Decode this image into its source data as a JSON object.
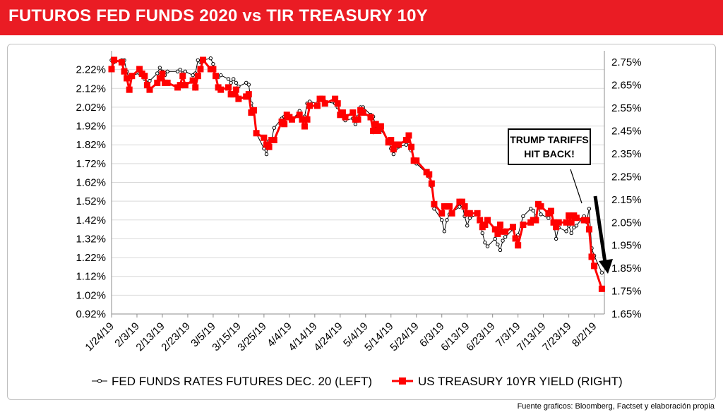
{
  "header": {
    "title": "FUTUROS FED FUNDS 2020 vs TIR TREASURY 10Y"
  },
  "footer": {
    "source": "Fuente graficos: Bloomberg, Factset y elaboración propia"
  },
  "colors": {
    "banner": "#ea1c24",
    "treasury": "#ff0000",
    "fedfunds": "#000000",
    "arrow": "#000000"
  },
  "annotation": {
    "line1": "TRUMP TARIFFS",
    "line2": "HIT BACK!"
  },
  "chart_data": {
    "type": "line",
    "title": "",
    "legend_position": "bottom",
    "grid": true,
    "x_ticks": [
      "1/24/19",
      "2/3/19",
      "2/13/19",
      "2/23/19",
      "3/5/19",
      "3/15/19",
      "3/25/19",
      "4/4/19",
      "4/14/19",
      "4/24/19",
      "5/4/19",
      "5/14/19",
      "5/24/19",
      "6/3/19",
      "6/13/19",
      "6/23/19",
      "7/3/19",
      "7/13/19",
      "7/23/19",
      "8/2/19"
    ],
    "y_left": {
      "min": 0.92,
      "max": 2.32,
      "ticks": [
        "0.92%",
        "1.02%",
        "1.12%",
        "1.22%",
        "1.32%",
        "1.42%",
        "1.52%",
        "1.62%",
        "1.72%",
        "1.82%",
        "1.92%",
        "2.02%",
        "2.12%",
        "2.22%"
      ]
    },
    "y_right": {
      "min": 1.65,
      "max": 2.8,
      "ticks": [
        "1.65%",
        "1.75%",
        "1.85%",
        "1.95%",
        "2.05%",
        "2.15%",
        "2.25%",
        "2.35%",
        "2.45%",
        "2.55%",
        "2.65%",
        "2.75%"
      ]
    },
    "series": [
      {
        "name": "FED FUNDS RATES FUTURES DEC. 20 (LEFT)",
        "axis": "left",
        "marker": "circle",
        "color": "#000000",
        "points": [
          [
            "1/24/19",
            2.27
          ],
          [
            "1/25/19",
            2.26
          ],
          [
            "1/28/19",
            2.27
          ],
          [
            "1/29/19",
            2.27
          ],
          [
            "1/30/19",
            2.21
          ],
          [
            "1/31/19",
            2.17
          ],
          [
            "2/1/19",
            2.19
          ],
          [
            "2/4/19",
            2.2
          ],
          [
            "2/5/19",
            2.19
          ],
          [
            "2/6/19",
            2.17
          ],
          [
            "2/7/19",
            2.15
          ],
          [
            "2/8/19",
            2.16
          ],
          [
            "2/11/19",
            2.2
          ],
          [
            "2/12/19",
            2.23
          ],
          [
            "2/13/19",
            2.21
          ],
          [
            "2/14/19",
            2.19
          ],
          [
            "2/15/19",
            2.21
          ],
          [
            "2/19/19",
            2.21
          ],
          [
            "2/20/19",
            2.22
          ],
          [
            "2/21/19",
            2.2
          ],
          [
            "2/22/19",
            2.21
          ],
          [
            "2/25/19",
            2.19
          ],
          [
            "2/26/19",
            2.2
          ],
          [
            "2/27/19",
            2.27
          ],
          [
            "2/28/19",
            2.26
          ],
          [
            "3/1/19",
            2.27
          ],
          [
            "3/4/19",
            2.28
          ],
          [
            "3/5/19",
            2.25
          ],
          [
            "3/6/19",
            2.19
          ],
          [
            "3/7/19",
            2.18
          ],
          [
            "3/8/19",
            2.19
          ],
          [
            "3/11/19",
            2.17
          ],
          [
            "3/12/19",
            2.15
          ],
          [
            "3/13/19",
            2.17
          ],
          [
            "3/14/19",
            2.15
          ],
          [
            "3/15/19",
            2.13
          ],
          [
            "3/18/19",
            2.15
          ],
          [
            "3/19/19",
            2.14
          ],
          [
            "3/20/19",
            2.04
          ],
          [
            "3/21/19",
            2.01
          ],
          [
            "3/22/19",
            1.88
          ],
          [
            "3/25/19",
            1.8
          ],
          [
            "3/26/19",
            1.77
          ],
          [
            "3/27/19",
            1.84
          ],
          [
            "3/28/19",
            1.85
          ],
          [
            "3/29/19",
            1.91
          ],
          [
            "4/1/19",
            1.96
          ],
          [
            "4/2/19",
            1.97
          ],
          [
            "4/3/19",
            1.98
          ],
          [
            "4/4/19",
            1.96
          ],
          [
            "4/5/19",
            1.95
          ],
          [
            "4/8/19",
            2.0
          ],
          [
            "4/9/19",
            1.96
          ],
          [
            "4/10/19",
            1.97
          ],
          [
            "4/11/19",
            2.04
          ],
          [
            "4/12/19",
            2.05
          ],
          [
            "4/15/19",
            2.04
          ],
          [
            "4/16/19",
            2.06
          ],
          [
            "4/17/19",
            2.07
          ],
          [
            "4/18/19",
            2.05
          ],
          [
            "4/22/19",
            2.04
          ],
          [
            "4/23/19",
            2.02
          ],
          [
            "4/24/19",
            1.98
          ],
          [
            "4/25/19",
            1.99
          ],
          [
            "4/26/19",
            1.95
          ],
          [
            "4/29/19",
            1.96
          ],
          [
            "4/30/19",
            1.93
          ],
          [
            "5/1/19",
            1.97
          ],
          [
            "5/2/19",
            2.02
          ],
          [
            "5/3/19",
            2.02
          ],
          [
            "5/6/19",
            1.98
          ],
          [
            "5/7/19",
            1.97
          ],
          [
            "5/8/19",
            1.92
          ],
          [
            "5/9/19",
            1.91
          ],
          [
            "5/10/19",
            1.9
          ],
          [
            "5/13/19",
            1.84
          ],
          [
            "5/14/19",
            1.8
          ],
          [
            "5/15/19",
            1.77
          ],
          [
            "5/16/19",
            1.8
          ],
          [
            "5/17/19",
            1.81
          ],
          [
            "5/20/19",
            1.82
          ],
          [
            "5/21/19",
            1.83
          ],
          [
            "5/22/19",
            1.79
          ],
          [
            "5/23/19",
            1.73
          ],
          [
            "5/24/19",
            1.72
          ],
          [
            "5/28/19",
            1.67
          ],
          [
            "5/29/19",
            1.65
          ],
          [
            "5/30/19",
            1.6
          ],
          [
            "5/31/19",
            1.48
          ],
          [
            "6/3/19",
            1.42
          ],
          [
            "6/4/19",
            1.36
          ],
          [
            "6/5/19",
            1.42
          ],
          [
            "6/6/19",
            1.45
          ],
          [
            "6/7/19",
            1.46
          ],
          [
            "6/10/19",
            1.49
          ],
          [
            "6/11/19",
            1.5
          ],
          [
            "6/12/19",
            1.44
          ],
          [
            "6/13/19",
            1.39
          ],
          [
            "6/14/19",
            1.43
          ],
          [
            "6/17/19",
            1.45
          ],
          [
            "6/18/19",
            1.42
          ],
          [
            "6/19/19",
            1.35
          ],
          [
            "6/20/19",
            1.3
          ],
          [
            "6/21/19",
            1.28
          ],
          [
            "6/24/19",
            1.32
          ],
          [
            "6/25/19",
            1.29
          ],
          [
            "6/26/19",
            1.26
          ],
          [
            "6/27/19",
            1.31
          ],
          [
            "6/28/19",
            1.33
          ],
          [
            "7/1/19",
            1.37
          ],
          [
            "7/2/19",
            1.33
          ],
          [
            "7/3/19",
            1.34
          ],
          [
            "7/5/19",
            1.44
          ],
          [
            "7/8/19",
            1.48
          ],
          [
            "7/9/19",
            1.47
          ],
          [
            "7/10/19",
            1.44
          ],
          [
            "7/11/19",
            1.49
          ],
          [
            "7/12/19",
            1.45
          ],
          [
            "7/15/19",
            1.43
          ],
          [
            "7/16/19",
            1.46
          ],
          [
            "7/17/19",
            1.41
          ],
          [
            "7/18/19",
            1.32
          ],
          [
            "7/19/19",
            1.38
          ],
          [
            "7/22/19",
            1.36
          ],
          [
            "7/23/19",
            1.39
          ],
          [
            "7/24/19",
            1.35
          ],
          [
            "7/25/19",
            1.38
          ],
          [
            "7/26/19",
            1.39
          ],
          [
            "7/29/19",
            1.44
          ],
          [
            "7/30/19",
            1.41
          ],
          [
            "7/31/19",
            1.48
          ],
          [
            "8/1/19",
            1.27
          ],
          [
            "8/2/19",
            1.23
          ],
          [
            "8/5/19",
            1.14
          ]
        ]
      },
      {
        "name": "US TREASURY 10YR YIELD (RIGHT)",
        "axis": "right",
        "marker": "square",
        "color": "#ff0000",
        "points": [
          [
            "1/24/19",
            2.72
          ],
          [
            "1/25/19",
            2.76
          ],
          [
            "1/28/19",
            2.75
          ],
          [
            "1/29/19",
            2.71
          ],
          [
            "1/30/19",
            2.68
          ],
          [
            "1/31/19",
            2.63
          ],
          [
            "2/1/19",
            2.69
          ],
          [
            "2/4/19",
            2.72
          ],
          [
            "2/5/19",
            2.7
          ],
          [
            "2/6/19",
            2.69
          ],
          [
            "2/7/19",
            2.65
          ],
          [
            "2/8/19",
            2.63
          ],
          [
            "2/11/19",
            2.66
          ],
          [
            "2/12/19",
            2.68
          ],
          [
            "2/13/19",
            2.7
          ],
          [
            "2/14/19",
            2.66
          ],
          [
            "2/15/19",
            2.66
          ],
          [
            "2/19/19",
            2.64
          ],
          [
            "2/20/19",
            2.65
          ],
          [
            "2/21/19",
            2.69
          ],
          [
            "2/22/19",
            2.65
          ],
          [
            "2/25/19",
            2.67
          ],
          [
            "2/26/19",
            2.64
          ],
          [
            "2/27/19",
            2.69
          ],
          [
            "2/28/19",
            2.72
          ],
          [
            "3/1/19",
            2.76
          ],
          [
            "3/4/19",
            2.72
          ],
          [
            "3/5/19",
            2.72
          ],
          [
            "3/6/19",
            2.69
          ],
          [
            "3/7/19",
            2.64
          ],
          [
            "3/8/19",
            2.63
          ],
          [
            "3/11/19",
            2.64
          ],
          [
            "3/12/19",
            2.61
          ],
          [
            "3/13/19",
            2.61
          ],
          [
            "3/14/19",
            2.63
          ],
          [
            "3/15/19",
            2.59
          ],
          [
            "3/18/19",
            2.6
          ],
          [
            "3/19/19",
            2.61
          ],
          [
            "3/20/19",
            2.53
          ],
          [
            "3/21/19",
            2.54
          ],
          [
            "3/22/19",
            2.44
          ],
          [
            "3/25/19",
            2.42
          ],
          [
            "3/26/19",
            2.39
          ],
          [
            "3/27/19",
            2.38
          ],
          [
            "3/28/19",
            2.41
          ],
          [
            "3/29/19",
            2.41
          ],
          [
            "4/1/19",
            2.49
          ],
          [
            "4/2/19",
            2.48
          ],
          [
            "4/3/19",
            2.52
          ],
          [
            "4/4/19",
            2.51
          ],
          [
            "4/5/19",
            2.5
          ],
          [
            "4/8/19",
            2.52
          ],
          [
            "4/9/19",
            2.5
          ],
          [
            "4/10/19",
            2.47
          ],
          [
            "4/11/19",
            2.5
          ],
          [
            "4/12/19",
            2.56
          ],
          [
            "4/15/19",
            2.56
          ],
          [
            "4/16/19",
            2.59
          ],
          [
            "4/17/19",
            2.59
          ],
          [
            "4/18/19",
            2.57
          ],
          [
            "4/22/19",
            2.59
          ],
          [
            "4/23/19",
            2.57
          ],
          [
            "4/24/19",
            2.52
          ],
          [
            "4/25/19",
            2.53
          ],
          [
            "4/26/19",
            2.51
          ],
          [
            "4/29/19",
            2.53
          ],
          [
            "4/30/19",
            2.5
          ],
          [
            "5/1/19",
            2.5
          ],
          [
            "5/2/19",
            2.54
          ],
          [
            "5/3/19",
            2.53
          ],
          [
            "5/6/19",
            2.51
          ],
          [
            "5/7/19",
            2.45
          ],
          [
            "5/8/19",
            2.48
          ],
          [
            "5/9/19",
            2.45
          ],
          [
            "5/10/19",
            2.47
          ],
          [
            "5/13/19",
            2.4
          ],
          [
            "5/14/19",
            2.41
          ],
          [
            "5/15/19",
            2.37
          ],
          [
            "5/16/19",
            2.39
          ],
          [
            "5/17/19",
            2.39
          ],
          [
            "5/20/19",
            2.41
          ],
          [
            "5/21/19",
            2.43
          ],
          [
            "5/22/19",
            2.38
          ],
          [
            "5/23/19",
            2.32
          ],
          [
            "5/24/19",
            2.32
          ],
          [
            "5/28/19",
            2.27
          ],
          [
            "5/29/19",
            2.26
          ],
          [
            "5/30/19",
            2.22
          ],
          [
            "5/31/19",
            2.13
          ],
          [
            "6/3/19",
            2.09
          ],
          [
            "6/4/19",
            2.12
          ],
          [
            "6/5/19",
            2.12
          ],
          [
            "6/6/19",
            2.12
          ],
          [
            "6/7/19",
            2.09
          ],
          [
            "6/10/19",
            2.14
          ],
          [
            "6/11/19",
            2.14
          ],
          [
            "6/12/19",
            2.12
          ],
          [
            "6/13/19",
            2.09
          ],
          [
            "6/14/19",
            2.09
          ],
          [
            "6/17/19",
            2.09
          ],
          [
            "6/18/19",
            2.06
          ],
          [
            "6/19/19",
            2.03
          ],
          [
            "6/20/19",
            2.04
          ],
          [
            "6/21/19",
            2.06
          ],
          [
            "6/24/19",
            2.02
          ],
          [
            "6/25/19",
            2.0
          ],
          [
            "6/26/19",
            2.04
          ],
          [
            "6/27/19",
            2.01
          ],
          [
            "6/28/19",
            2.01
          ],
          [
            "7/1/19",
            2.03
          ],
          [
            "7/2/19",
            1.98
          ],
          [
            "7/3/19",
            1.95
          ],
          [
            "7/5/19",
            2.04
          ],
          [
            "7/8/19",
            2.05
          ],
          [
            "7/9/19",
            2.06
          ],
          [
            "7/10/19",
            2.06
          ],
          [
            "7/11/19",
            2.13
          ],
          [
            "7/12/19",
            2.12
          ],
          [
            "7/15/19",
            2.09
          ],
          [
            "7/16/19",
            2.1
          ],
          [
            "7/17/19",
            2.05
          ],
          [
            "7/18/19",
            2.03
          ],
          [
            "7/19/19",
            2.05
          ],
          [
            "7/22/19",
            2.05
          ],
          [
            "7/23/19",
            2.08
          ],
          [
            "7/24/19",
            2.05
          ],
          [
            "7/25/19",
            2.08
          ],
          [
            "7/26/19",
            2.07
          ],
          [
            "7/29/19",
            2.06
          ],
          [
            "7/30/19",
            2.06
          ],
          [
            "7/31/19",
            2.02
          ],
          [
            "8/1/19",
            1.9
          ],
          [
            "8/2/19",
            1.86
          ],
          [
            "8/5/19",
            1.76
          ]
        ]
      }
    ]
  }
}
